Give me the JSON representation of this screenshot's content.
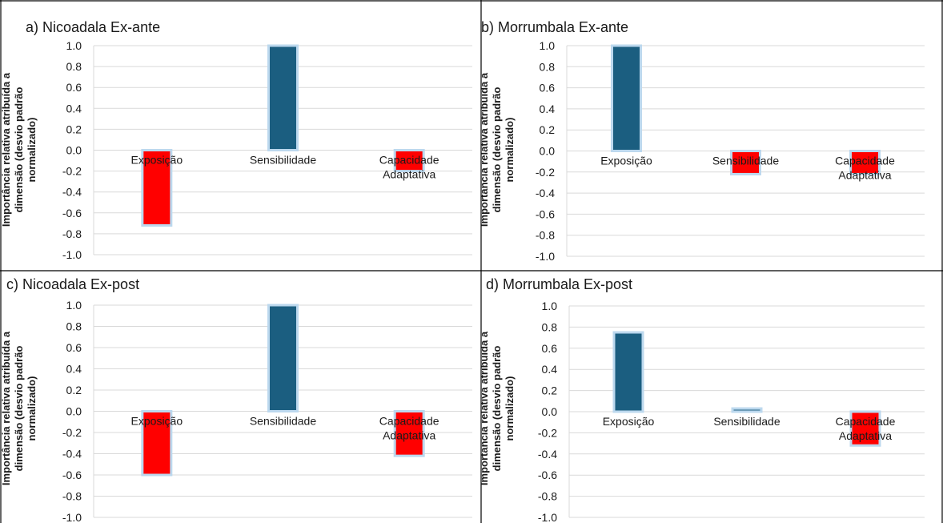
{
  "colors": {
    "positive": "#1b5e80",
    "negative": "#ff0000",
    "glow": "#bcd8ee",
    "grid": "#d9d9d9"
  },
  "panels": [
    {
      "title": "a) Nicoadala Ex-ante"
    },
    {
      "title": "b) Morrumbala Ex-ante"
    },
    {
      "title": "c) Nicoadala Ex-post"
    },
    {
      "title": "d) Morrumbala Ex-post"
    }
  ],
  "chart_data": [
    {
      "type": "bar",
      "title": "a) Nicoadala Ex-ante",
      "ylabel": "Importância relativa atribuída a dimensão (desvio padrão normalizado)",
      "categories": [
        "Exposição",
        "Sensibilidade",
        "Capacidade Adaptativa"
      ],
      "values": [
        -0.72,
        1.0,
        -0.2
      ],
      "ylim": [
        -1.0,
        1.0
      ],
      "yticks": [
        "1.0",
        "0.8",
        "0.6",
        "0.4",
        "0.2",
        "0.0",
        "-0.2",
        "-0.4",
        "-0.6",
        "-0.8",
        "-1.0"
      ],
      "grid": true,
      "legend": "none"
    },
    {
      "type": "bar",
      "title": "b) Morrumbala Ex-ante",
      "ylabel": "Importância relativa atribuída a dimensão (desvio padrão normalizado)",
      "categories": [
        "Exposição",
        "Sensibilidade",
        "Capacidade Adaptativa"
      ],
      "values": [
        1.0,
        -0.22,
        -0.22
      ],
      "ylim": [
        -1.0,
        1.0
      ],
      "yticks": [
        "1.0",
        "0.8",
        "0.6",
        "0.4",
        "0.2",
        "0.0",
        "-0.2",
        "-0.4",
        "-0.6",
        "-0.8",
        "-1.0"
      ],
      "grid": true,
      "legend": "none"
    },
    {
      "type": "bar",
      "title": "c) Nicoadala Ex-post",
      "ylabel": "Importância relativa atribuída a dimensão (desvio padrão normalizado)",
      "categories": [
        "Exposição",
        "Sensibilidade",
        "Capacidade Adaptativa"
      ],
      "values": [
        -0.6,
        1.0,
        -0.42
      ],
      "ylim": [
        -1.0,
        1.0
      ],
      "yticks": [
        "1.0",
        "0.8",
        "0.6",
        "0.4",
        "0.2",
        "0.0",
        "-0.2",
        "-0.4",
        "-0.6",
        "-0.8",
        "-1.0"
      ],
      "grid": true,
      "legend": "none"
    },
    {
      "type": "bar",
      "title": "d) Morrumbala Ex-post",
      "ylabel": "Importância relativa atribuída a dimensão (desvio padrão normalizado)",
      "categories": [
        "Exposição",
        "Sensibilidade",
        "Capacidade Adaptativa"
      ],
      "values": [
        0.75,
        0.03,
        -0.32
      ],
      "ylim": [
        -1.0,
        1.0
      ],
      "yticks": [
        "1.0",
        "0.8",
        "0.6",
        "0.4",
        "0.2",
        "0.0",
        "-0.2",
        "-0.4",
        "-0.6",
        "-0.8",
        "-1.0"
      ],
      "grid": true,
      "legend": "none"
    }
  ]
}
